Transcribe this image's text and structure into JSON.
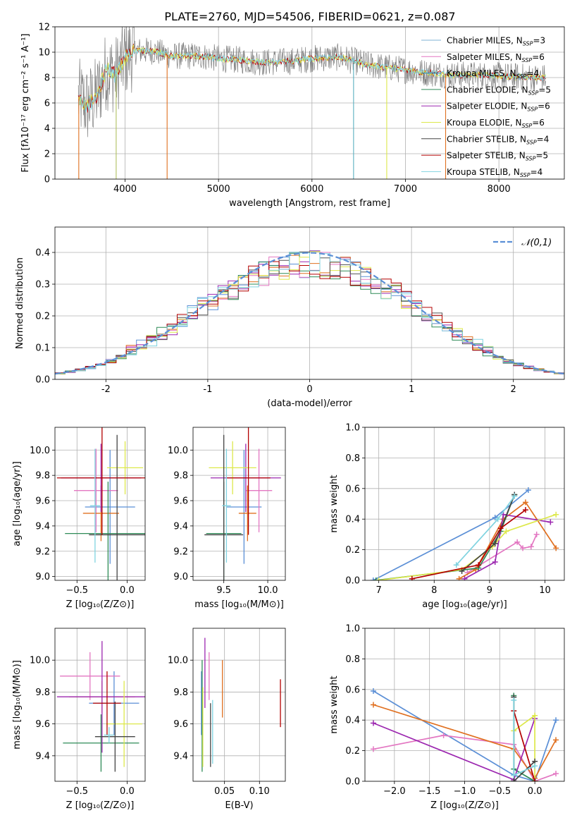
{
  "figure_title": "PLATE=2760, MJD=54506, FIBERID=0621, z=0.087",
  "models": [
    {
      "name": "Chabrier MILES",
      "color": "#5b8fd6"
    },
    {
      "name": "Salpeter MILES",
      "color": "#e377c2"
    },
    {
      "name": "Kroupa MILES",
      "color": "#8c564b"
    },
    {
      "name": "Chabrier ELODIE",
      "color": "#2e8b57"
    },
    {
      "name": "Salpeter ELODIE",
      "color": "#9c27b0"
    },
    {
      "name": "Kroupa ELODIE",
      "color": "#dde84a"
    },
    {
      "name": "Chabrier STELIB",
      "color": "#444444"
    },
    {
      "name": "Salpeter STELIB",
      "color": "#b30000"
    },
    {
      "name": "Kroupa STELIB",
      "color": "#7fd3e0"
    }
  ],
  "chart_data": [
    {
      "type": "line",
      "id": "spectrum",
      "xlabel": "wavelength [Angstrom, rest frame]",
      "ylabel": "Flux [fλ10⁻¹⁷ erg cm⁻² s⁻¹ A⁻¹]",
      "xlim": [
        3250,
        8700
      ],
      "ylim": [
        0,
        12
      ],
      "xticks": [
        4000,
        5000,
        6000,
        7000,
        8000
      ],
      "yticks": [
        0,
        2,
        4,
        6,
        8,
        10,
        12
      ],
      "legend_position": "right",
      "legend": [
        {
          "text": "Chabrier MILES, N",
          "sub": "SSP",
          "suffix": "=3",
          "color": "#7fb3d5"
        },
        {
          "text": "Salpeter MILES, N",
          "sub": "SSP",
          "suffix": "=6",
          "color": "#e377c2"
        },
        {
          "text": "Kroupa MILES, N",
          "sub": "SSP",
          "suffix": "=4",
          "color": "#1f77b4"
        },
        {
          "text": "Chabrier ELODIE, N",
          "sub": "SSP",
          "suffix": "=5",
          "color": "#2e8b57"
        },
        {
          "text": "Salpeter ELODIE, N",
          "sub": "SSP",
          "suffix": "=6",
          "color": "#9c27b0"
        },
        {
          "text": "Kroupa ELODIE, N",
          "sub": "SSP",
          "suffix": "=6",
          "color": "#dde84a"
        },
        {
          "text": "Chabrier STELIB, N",
          "sub": "SSP",
          "suffix": "=4",
          "color": "#444444"
        },
        {
          "text": "Salpeter STELIB, N",
          "sub": "SSP",
          "suffix": "=5",
          "color": "#b30000"
        },
        {
          "text": "Kroupa STELIB, N",
          "sub": "SSP",
          "suffix": "=4",
          "color": "#7fd3e0"
        }
      ],
      "data_series": {
        "x_start": 3500,
        "x_end": 8500,
        "x_step": 10,
        "color": "#808080"
      },
      "model_continuum": {
        "x": [
          3500,
          3600,
          3700,
          3800,
          3900,
          4000,
          4100,
          4300,
          4500,
          4800,
          5000,
          5200,
          5500,
          5800,
          6000,
          6300,
          6600,
          6900,
          7200,
          7500,
          7800,
          8100,
          8400,
          8500
        ],
        "y": [
          6.4,
          5.8,
          6.6,
          8.6,
          8.2,
          9.6,
          10.1,
          10.1,
          9.7,
          9.7,
          9.5,
          9.4,
          9.2,
          9.3,
          9.5,
          9.6,
          9.0,
          8.7,
          8.4,
          8.2,
          8.2,
          8.1,
          8.0,
          8.0
        ],
        "colors": [
          "#b30000",
          "#dde84a",
          "#7fd3e0"
        ]
      },
      "masked_spikes": [
        {
          "x": 3505,
          "color": "#e07020"
        },
        {
          "x": 3905,
          "color": "#b0c060"
        },
        {
          "x": 4450,
          "color": "#e07020"
        },
        {
          "x": 6445,
          "color": "#5bb0c0"
        },
        {
          "x": 6800,
          "color": "#dde84a"
        },
        {
          "x": 7430,
          "color": "#e07020"
        }
      ]
    },
    {
      "type": "histogram",
      "id": "residuals",
      "xlabel": "(data-model)/error",
      "ylabel": "Normed distribution",
      "xlim": [
        -2.5,
        2.5
      ],
      "ylim": [
        0,
        0.48
      ],
      "xticks": [
        -2,
        -1,
        0,
        1,
        2
      ],
      "yticks": [
        0.0,
        0.1,
        0.2,
        0.3,
        0.4
      ],
      "ytick_labels": [
        "0.0",
        "0.1",
        "0.2",
        "0.3",
        "0.4"
      ],
      "bin_width": 0.1,
      "bin_start": -2.5,
      "legend_position": "top-right",
      "legend": [
        {
          "text": "𝒩(0,1)",
          "color": "#5b8fd6"
        }
      ],
      "series_colors": [
        "#5b8fd6",
        "#e377c2",
        "#e07020",
        "#2e8b57",
        "#9c27b0",
        "#dde84a",
        "#555555",
        "#b30000",
        "#7fd3e0"
      ],
      "gaussian": {
        "mean": 0,
        "sigma": 1
      }
    },
    {
      "type": "scatter",
      "id": "age-vs-Z",
      "xlabel": "Z [log₁₀(Z/Z⊙)]",
      "ylabel": "age  [log₁₀(age/yr)]",
      "xlim": [
        -0.72,
        0.18
      ],
      "ylim": [
        8.97,
        10.18
      ],
      "xticks": [
        -0.5,
        0.0
      ],
      "xtick_labels": [
        "−0.5",
        "0.0"
      ],
      "yticks": [
        9.0,
        9.2,
        9.4,
        9.6,
        9.8,
        10.0
      ],
      "yticks_labels": [
        "9.0",
        "9.2",
        "9.4",
        "9.6",
        "9.8",
        "10.0"
      ],
      "points": [
        {
          "x": -0.17,
          "y": 9.55,
          "xerr": 0.25,
          "yerr": 0.45,
          "color": "#5b8fd6"
        },
        {
          "x": -0.31,
          "y": 9.68,
          "xerr": 0.22,
          "yerr": 0.33,
          "color": "#e377c2"
        },
        {
          "x": -0.26,
          "y": 9.5,
          "xerr": 0.18,
          "yerr": 0.22,
          "color": "#e07020"
        },
        {
          "x": -0.19,
          "y": 9.34,
          "xerr": 0.43,
          "yerr": 0.41,
          "color": "#2e8b57"
        },
        {
          "x": -0.26,
          "y": 9.78,
          "xerr": 0.4,
          "yerr": 0.27,
          "color": "#9c27b0"
        },
        {
          "x": -0.02,
          "y": 9.86,
          "xerr": 0.18,
          "yerr": 0.21,
          "color": "#dde84a"
        },
        {
          "x": -0.1,
          "y": 9.33,
          "xerr": 0.28,
          "yerr": 0.79,
          "color": "#444444"
        },
        {
          "x": -0.25,
          "y": 9.78,
          "xerr": 0.45,
          "yerr": 0.45,
          "color": "#b30000"
        },
        {
          "x": -0.32,
          "y": 9.56,
          "xerr": 0.05,
          "yerr": 0.45,
          "color": "#7fd3e0"
        }
      ]
    },
    {
      "type": "scatter",
      "id": "age-vs-mass",
      "xlabel": "mass [log₁₀(M/M⊙)]",
      "ylabel": "",
      "xlim": [
        9.15,
        10.2
      ],
      "ylim": [
        8.97,
        10.18
      ],
      "xticks": [
        9.5,
        10.0
      ],
      "xtick_labels": [
        "9.5",
        "10.0"
      ],
      "yticks": [
        9.0,
        9.2,
        9.4,
        9.6,
        9.8,
        10.0
      ],
      "yticks_labels": [
        "9.0",
        "9.2",
        "9.4",
        "9.6",
        "9.8",
        "10.0"
      ],
      "points": [
        {
          "x": 9.73,
          "y": 9.55,
          "xerr": 0.2,
          "yerr": 0.45,
          "color": "#5b8fd6"
        },
        {
          "x": 9.9,
          "y": 9.68,
          "xerr": 0.15,
          "yerr": 0.33,
          "color": "#e377c2"
        },
        {
          "x": 9.77,
          "y": 9.5,
          "xerr": 0.1,
          "yerr": 0.22,
          "color": "#e07020"
        },
        {
          "x": 9.5,
          "y": 9.34,
          "xerr": 0.2,
          "yerr": 0.41,
          "color": "#2e8b57"
        },
        {
          "x": 9.75,
          "y": 9.78,
          "xerr": 0.4,
          "yerr": 0.27,
          "color": "#9c27b0"
        },
        {
          "x": 9.6,
          "y": 9.86,
          "xerr": 0.27,
          "yerr": 0.21,
          "color": "#dde84a"
        },
        {
          "x": 9.5,
          "y": 9.33,
          "xerr": 0.22,
          "yerr": 0.79,
          "color": "#444444"
        },
        {
          "x": 9.78,
          "y": 9.78,
          "xerr": 0.25,
          "yerr": 0.45,
          "color": "#b30000"
        },
        {
          "x": 9.53,
          "y": 9.56,
          "xerr": 0.05,
          "yerr": 0.45,
          "color": "#7fd3e0"
        }
      ]
    },
    {
      "type": "line",
      "id": "mass-weight-vs-age",
      "xlabel": "age  [log₁₀(age/yr)]",
      "ylabel": "mass weight",
      "xlim": [
        6.75,
        10.35
      ],
      "ylim": [
        0,
        1
      ],
      "xticks": [
        7,
        8,
        9,
        10
      ],
      "yticks": [
        0.0,
        0.2,
        0.4,
        0.6,
        0.8,
        1.0
      ],
      "ytick_labels": [
        "0.0",
        "0.2",
        "0.4",
        "0.6",
        "0.8",
        "1.0"
      ],
      "series": [
        {
          "color": "#5b8fd6",
          "x": [
            6.9,
            9.1,
            9.7
          ],
          "y": [
            0.0,
            0.41,
            0.59
          ]
        },
        {
          "color": "#e377c2",
          "x": [
            8.6,
            9.5,
            9.6,
            9.75,
            9.85
          ],
          "y": [
            0.05,
            0.25,
            0.21,
            0.22,
            0.3
          ]
        },
        {
          "color": "#e07020",
          "x": [
            8.45,
            8.75,
            9.25,
            9.65,
            10.2
          ],
          "y": [
            0.01,
            0.07,
            0.4,
            0.51,
            0.21
          ]
        },
        {
          "color": "#2e8b57",
          "x": [
            6.95,
            8.8,
            9.2,
            9.45
          ],
          "y": [
            0.0,
            0.08,
            0.32,
            0.56
          ]
        },
        {
          "color": "#9c27b0",
          "x": [
            8.55,
            9.1,
            9.25,
            10.1
          ],
          "y": [
            0.01,
            0.12,
            0.43,
            0.38
          ]
        },
        {
          "color": "#dde84a",
          "x": [
            7.0,
            8.5,
            9.05,
            9.3,
            10.2
          ],
          "y": [
            0.0,
            0.07,
            0.22,
            0.32,
            0.43
          ]
        },
        {
          "color": "#444444",
          "x": [
            8.5,
            9.1,
            9.45
          ],
          "y": [
            0.06,
            0.24,
            0.56
          ]
        },
        {
          "color": "#b30000",
          "x": [
            7.6,
            8.8,
            9.2,
            9.65
          ],
          "y": [
            0.01,
            0.1,
            0.34,
            0.46
          ]
        },
        {
          "color": "#7fd3e0",
          "x": [
            8.4,
            9.15,
            9.45
          ],
          "y": [
            0.1,
            0.4,
            0.55
          ]
        }
      ]
    },
    {
      "type": "scatter",
      "id": "mass-vs-Z",
      "xlabel": "Z [log₁₀(Z/Z⊙)]",
      "ylabel": "mass [log₁₀(M/M⊙)]",
      "xlim": [
        -0.72,
        0.18
      ],
      "ylim": [
        9.24,
        10.2
      ],
      "xticks": [
        -0.5,
        0.0
      ],
      "xtick_labels": [
        "−0.5",
        "0.0"
      ],
      "yticks": [
        9.4,
        9.6,
        9.8,
        10.0
      ],
      "yticks_labels": [
        "9.4",
        "9.6",
        "9.8",
        "10.0"
      ],
      "points": [
        {
          "x": -0.13,
          "y": 9.73,
          "xerr": 0.25,
          "yerr": 0.2,
          "color": "#5b8fd6"
        },
        {
          "x": -0.37,
          "y": 9.9,
          "xerr": 0.3,
          "yerr": 0.15,
          "color": "#e377c2"
        },
        {
          "x": -0.25,
          "y": 9.77,
          "xerr": 0.33,
          "yerr": 0.1,
          "color": "#e07020"
        },
        {
          "x": -0.26,
          "y": 9.48,
          "xerr": 0.38,
          "yerr": 0.18,
          "color": "#2e8b57"
        },
        {
          "x": -0.25,
          "y": 9.77,
          "xerr": 0.45,
          "yerr": 0.35,
          "color": "#9c27b0"
        },
        {
          "x": -0.03,
          "y": 9.6,
          "xerr": 0.18,
          "yerr": 0.27,
          "color": "#dde84a"
        },
        {
          "x": -0.12,
          "y": 9.52,
          "xerr": 0.2,
          "yerr": 0.22,
          "color": "#444444"
        },
        {
          "x": -0.2,
          "y": 9.73,
          "xerr": 0.14,
          "yerr": 0.2,
          "color": "#b30000"
        },
        {
          "x": -0.18,
          "y": 9.53,
          "xerr": 0.05,
          "yerr": 0.05,
          "color": "#7fd3e0"
        }
      ]
    },
    {
      "type": "scatter",
      "id": "mass-vs-EBV",
      "xlabel": "E(B-V)",
      "ylabel": "",
      "xlim": [
        0.005,
        0.137
      ],
      "ylim": [
        9.24,
        10.2
      ],
      "xticks": [
        0.05,
        0.1
      ],
      "xtick_labels": [
        "0.05",
        "0.10"
      ],
      "yticks": [
        9.4,
        9.6,
        9.8,
        10.0
      ],
      "yticks_labels": [
        "9.4",
        "9.6",
        "9.8",
        "10.0"
      ],
      "points": [
        {
          "x": 0.017,
          "y": 9.73,
          "xerr": 0.0,
          "yerr": 0.2,
          "color": "#5b8fd6"
        },
        {
          "x": 0.028,
          "y": 9.9,
          "xerr": 0.0,
          "yerr": 0.15,
          "color": "#e377c2"
        },
        {
          "x": 0.047,
          "y": 9.82,
          "xerr": 0.0,
          "yerr": 0.18,
          "color": "#e07020"
        },
        {
          "x": 0.018,
          "y": 9.65,
          "xerr": 0.0,
          "yerr": 0.35,
          "color": "#2e8b57"
        },
        {
          "x": 0.022,
          "y": 9.92,
          "xerr": 0.0,
          "yerr": 0.22,
          "color": "#9c27b0"
        },
        {
          "x": 0.019,
          "y": 9.58,
          "xerr": 0.0,
          "yerr": 0.25,
          "color": "#dde84a"
        },
        {
          "x": 0.03,
          "y": 9.53,
          "xerr": 0.0,
          "yerr": 0.2,
          "color": "#444444"
        },
        {
          "x": 0.13,
          "y": 9.73,
          "xerr": 0.0,
          "yerr": 0.15,
          "color": "#b30000"
        },
        {
          "x": 0.033,
          "y": 9.55,
          "xerr": 0.0,
          "yerr": 0.2,
          "color": "#7fd3e0"
        }
      ]
    },
    {
      "type": "line",
      "id": "mass-weight-vs-Z",
      "xlabel": "Z [log₁₀(Z/Z⊙)]",
      "ylabel": "mass weight",
      "xlim": [
        -2.42,
        0.42
      ],
      "ylim": [
        0,
        1
      ],
      "xticks": [
        -2.0,
        -1.5,
        -1.0,
        -0.5,
        0.0
      ],
      "xtick_labels": [
        "−2.0",
        "−1.5",
        "−1.0",
        "−0.5",
        "0.0"
      ],
      "yticks": [
        0.0,
        0.2,
        0.4,
        0.6,
        0.8,
        1.0
      ],
      "ytick_labels": [
        "0.0",
        "0.2",
        "0.4",
        "0.6",
        "0.8",
        "1.0"
      ],
      "series": [
        {
          "color": "#5b8fd6",
          "x": [
            -2.3,
            -0.3,
            0.0,
            0.3
          ],
          "y": [
            0.59,
            0.04,
            0.0,
            0.4
          ]
        },
        {
          "color": "#e377c2",
          "x": [
            -2.3,
            -1.3,
            -0.3,
            0.0,
            0.3
          ],
          "y": [
            0.21,
            0.3,
            0.24,
            0.0,
            0.05
          ]
        },
        {
          "color": "#e07020",
          "x": [
            -2.3,
            -0.3,
            0.0,
            0.3
          ],
          "y": [
            0.5,
            0.21,
            0.02,
            0.27
          ]
        },
        {
          "color": "#2e8b57",
          "x": [
            -0.3,
            -0.3,
            0.0
          ],
          "y": [
            0.56,
            0.08,
            0.0
          ]
        },
        {
          "color": "#9c27b0",
          "x": [
            -2.3,
            -0.3,
            0.0
          ],
          "y": [
            0.38,
            0.01,
            0.41
          ]
        },
        {
          "color": "#dde84a",
          "x": [
            -0.3,
            0.0,
            0.0
          ],
          "y": [
            0.33,
            0.43,
            0.0
          ]
        },
        {
          "color": "#444444",
          "x": [
            -0.3,
            -0.3,
            0.0
          ],
          "y": [
            0.55,
            0.0,
            0.13
          ]
        },
        {
          "color": "#b30000",
          "x": [
            -0.3,
            0.0
          ],
          "y": [
            0.46,
            0.0
          ]
        },
        {
          "color": "#7fd3e0",
          "x": [
            -0.3,
            -0.3,
            0.0
          ],
          "y": [
            0.53,
            0.04,
            0.1
          ]
        }
      ]
    }
  ]
}
